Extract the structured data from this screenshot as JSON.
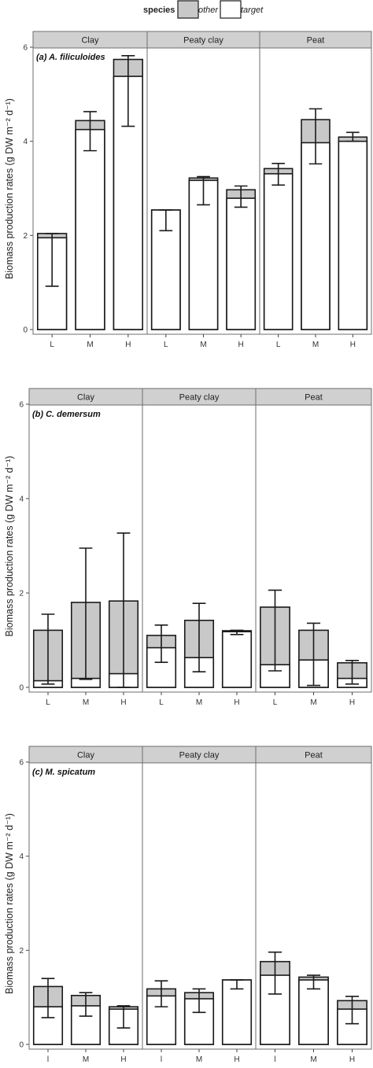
{
  "legend": {
    "title": "species",
    "items": [
      {
        "label": "other",
        "color": "#c8c8c8"
      },
      {
        "label": "target",
        "color": "#ffffff"
      }
    ]
  },
  "colors": {
    "other": "#c8c8c8",
    "target": "#ffffff",
    "strip": "#d0d0d0",
    "outline": "#1a1a1a",
    "panel_border": "#6e6e6e"
  },
  "chart_data": [
    {
      "type": "bar",
      "stacked": true,
      "title": "(a) A. filiculoides",
      "ylabel": "Biomass production rates (g DW m⁻² d⁻¹)",
      "ylim": [
        0,
        6
      ],
      "yticks": [
        0,
        2,
        4,
        6
      ],
      "grid": false,
      "legend": "top",
      "facets": [
        {
          "label": "Clay",
          "categories": [
            "L",
            "M",
            "H"
          ],
          "target": [
            1.95,
            4.25,
            5.38
          ],
          "total": [
            2.04,
            4.44,
            5.74
          ],
          "error_low": [
            0.92,
            3.8,
            4.32
          ],
          "error_high": [
            2.04,
            4.63,
            5.82
          ]
        },
        {
          "label": "Peaty clay",
          "categories": [
            "L",
            "M",
            "H"
          ],
          "target": [
            2.54,
            3.17,
            2.79
          ],
          "total": [
            2.54,
            3.22,
            2.97
          ],
          "error_low": [
            2.1,
            2.65,
            2.6
          ],
          "error_high": [
            2.54,
            3.25,
            3.05
          ]
        },
        {
          "label": "Peat",
          "categories": [
            "L",
            "M",
            "H"
          ],
          "target": [
            3.31,
            3.97,
            4.0
          ],
          "total": [
            3.42,
            4.46,
            4.09
          ],
          "error_low": [
            3.07,
            3.52,
            4.0
          ],
          "error_high": [
            3.53,
            4.69,
            4.19
          ]
        }
      ]
    },
    {
      "type": "bar",
      "stacked": true,
      "title": "(b) C. demersum",
      "ylabel": "Biomass production rates (g DW m⁻² d⁻¹)",
      "ylim": [
        0,
        6
      ],
      "yticks": [
        0,
        2,
        4,
        6
      ],
      "grid": false,
      "facets": [
        {
          "label": "Clay",
          "categories": [
            "L",
            "M",
            "H"
          ],
          "target": [
            0.14,
            0.19,
            0.29
          ],
          "total": [
            1.21,
            1.8,
            1.83
          ],
          "error_low": [
            0.07,
            0.17,
            0.0
          ],
          "error_high": [
            1.55,
            2.95,
            3.27
          ]
        },
        {
          "label": "Peaty clay",
          "categories": [
            "L",
            "M",
            "H"
          ],
          "target": [
            0.84,
            0.63,
            1.18
          ],
          "total": [
            1.1,
            1.42,
            1.2
          ],
          "error_low": [
            0.53,
            0.33,
            1.12
          ],
          "error_high": [
            1.32,
            1.78,
            1.21
          ]
        },
        {
          "label": "Peat",
          "categories": [
            "L",
            "M",
            "H"
          ],
          "target": [
            0.48,
            0.58,
            0.19
          ],
          "total": [
            1.7,
            1.21,
            0.52
          ],
          "error_low": [
            0.35,
            0.04,
            0.07
          ],
          "error_high": [
            2.06,
            1.36,
            0.57
          ]
        }
      ]
    },
    {
      "type": "bar",
      "stacked": true,
      "title": "(c) M. spicatum",
      "ylabel": "Biomass production rates (g DW m⁻² d⁻¹)",
      "ylim": [
        0,
        6
      ],
      "yticks": [
        0,
        2,
        4,
        6
      ],
      "grid": false,
      "facets": [
        {
          "label": "Clay",
          "categories": [
            "l",
            "M",
            "H"
          ],
          "target": [
            0.8,
            0.82,
            0.75
          ],
          "total": [
            1.23,
            1.04,
            0.8
          ],
          "error_low": [
            0.57,
            0.6,
            0.35
          ],
          "error_high": [
            1.4,
            1.1,
            0.82
          ]
        },
        {
          "label": "Peaty clay",
          "categories": [
            "l",
            "M",
            "H"
          ],
          "target": [
            1.03,
            0.97,
            1.37
          ],
          "total": [
            1.18,
            1.1,
            1.37
          ],
          "error_low": [
            0.8,
            0.68,
            1.18
          ],
          "error_high": [
            1.35,
            1.18,
            1.37
          ]
        },
        {
          "label": "Peat",
          "categories": [
            "l",
            "M",
            "H"
          ],
          "target": [
            1.47,
            1.37,
            0.75
          ],
          "total": [
            1.76,
            1.43,
            0.93
          ],
          "error_low": [
            1.07,
            1.18,
            0.44
          ],
          "error_high": [
            1.96,
            1.47,
            1.02
          ]
        }
      ]
    }
  ]
}
